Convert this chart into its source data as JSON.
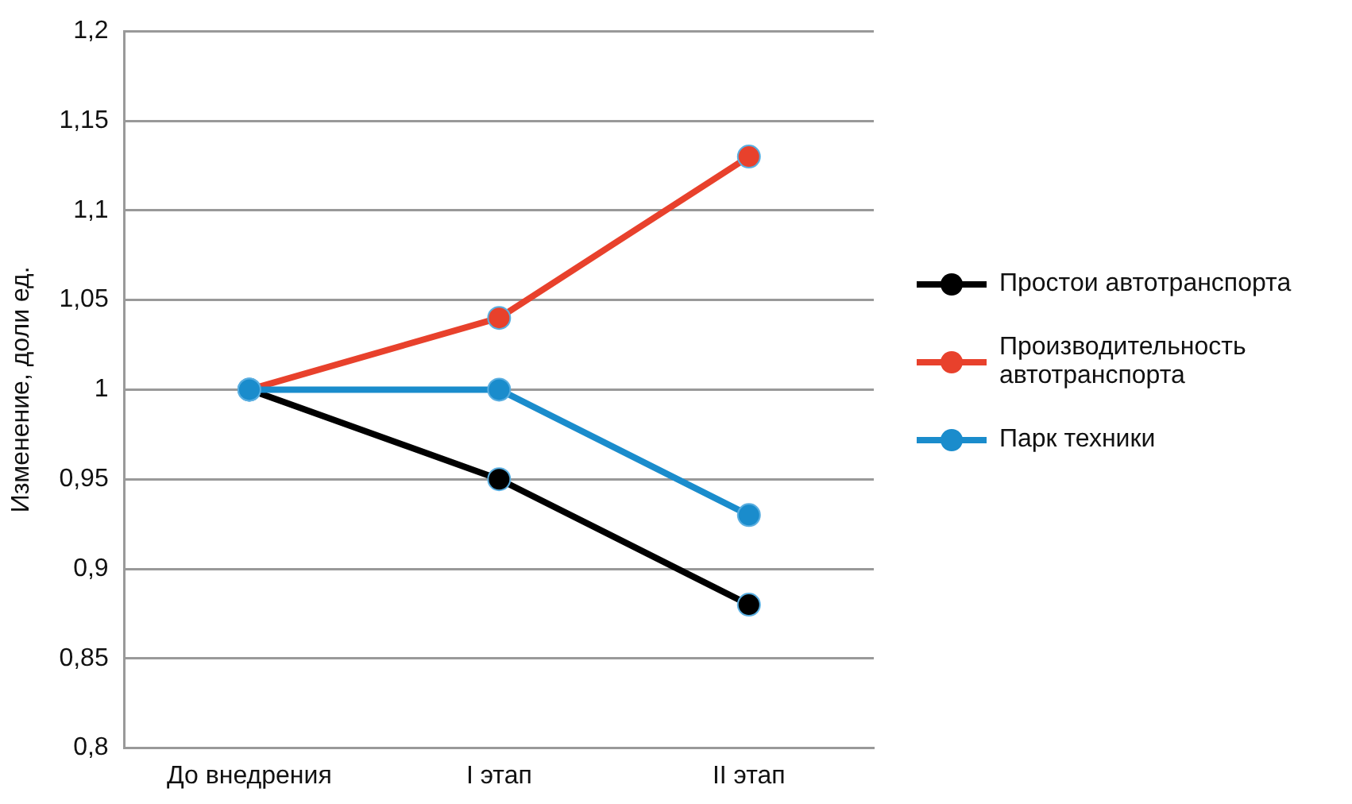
{
  "chart_data": {
    "type": "line",
    "ylabel": "Изменение, доли ед.",
    "categories": [
      "До внедрения",
      "I этап",
      "II этап"
    ],
    "series": [
      {
        "name": "Простои автотранспорта",
        "color": "#000000",
        "values": [
          1,
          0.95,
          0.88
        ]
      },
      {
        "name": "Производительность автотранспорта",
        "color": "#e8412c",
        "values": [
          1,
          1.04,
          1.13
        ]
      },
      {
        "name": "Парк техники",
        "color": "#1a8ccc",
        "values": [
          1,
          1,
          0.93
        ]
      }
    ],
    "ylim": [
      0.8,
      1.2
    ],
    "yticks": [
      {
        "value": 0.8,
        "label": "0,8"
      },
      {
        "value": 0.85,
        "label": "0,85"
      },
      {
        "value": 0.9,
        "label": "0,9"
      },
      {
        "value": 0.95,
        "label": "0,95"
      },
      {
        "value": 1,
        "label": "1"
      },
      {
        "value": 1.05,
        "label": "1,05"
      },
      {
        "value": 1.1,
        "label": "1,1"
      },
      {
        "value": 1.15,
        "label": "1,15"
      },
      {
        "value": 1.2,
        "label": "1,2"
      }
    ],
    "grid": "y",
    "legend": "right",
    "marker": "circle",
    "line_style": "solid"
  }
}
